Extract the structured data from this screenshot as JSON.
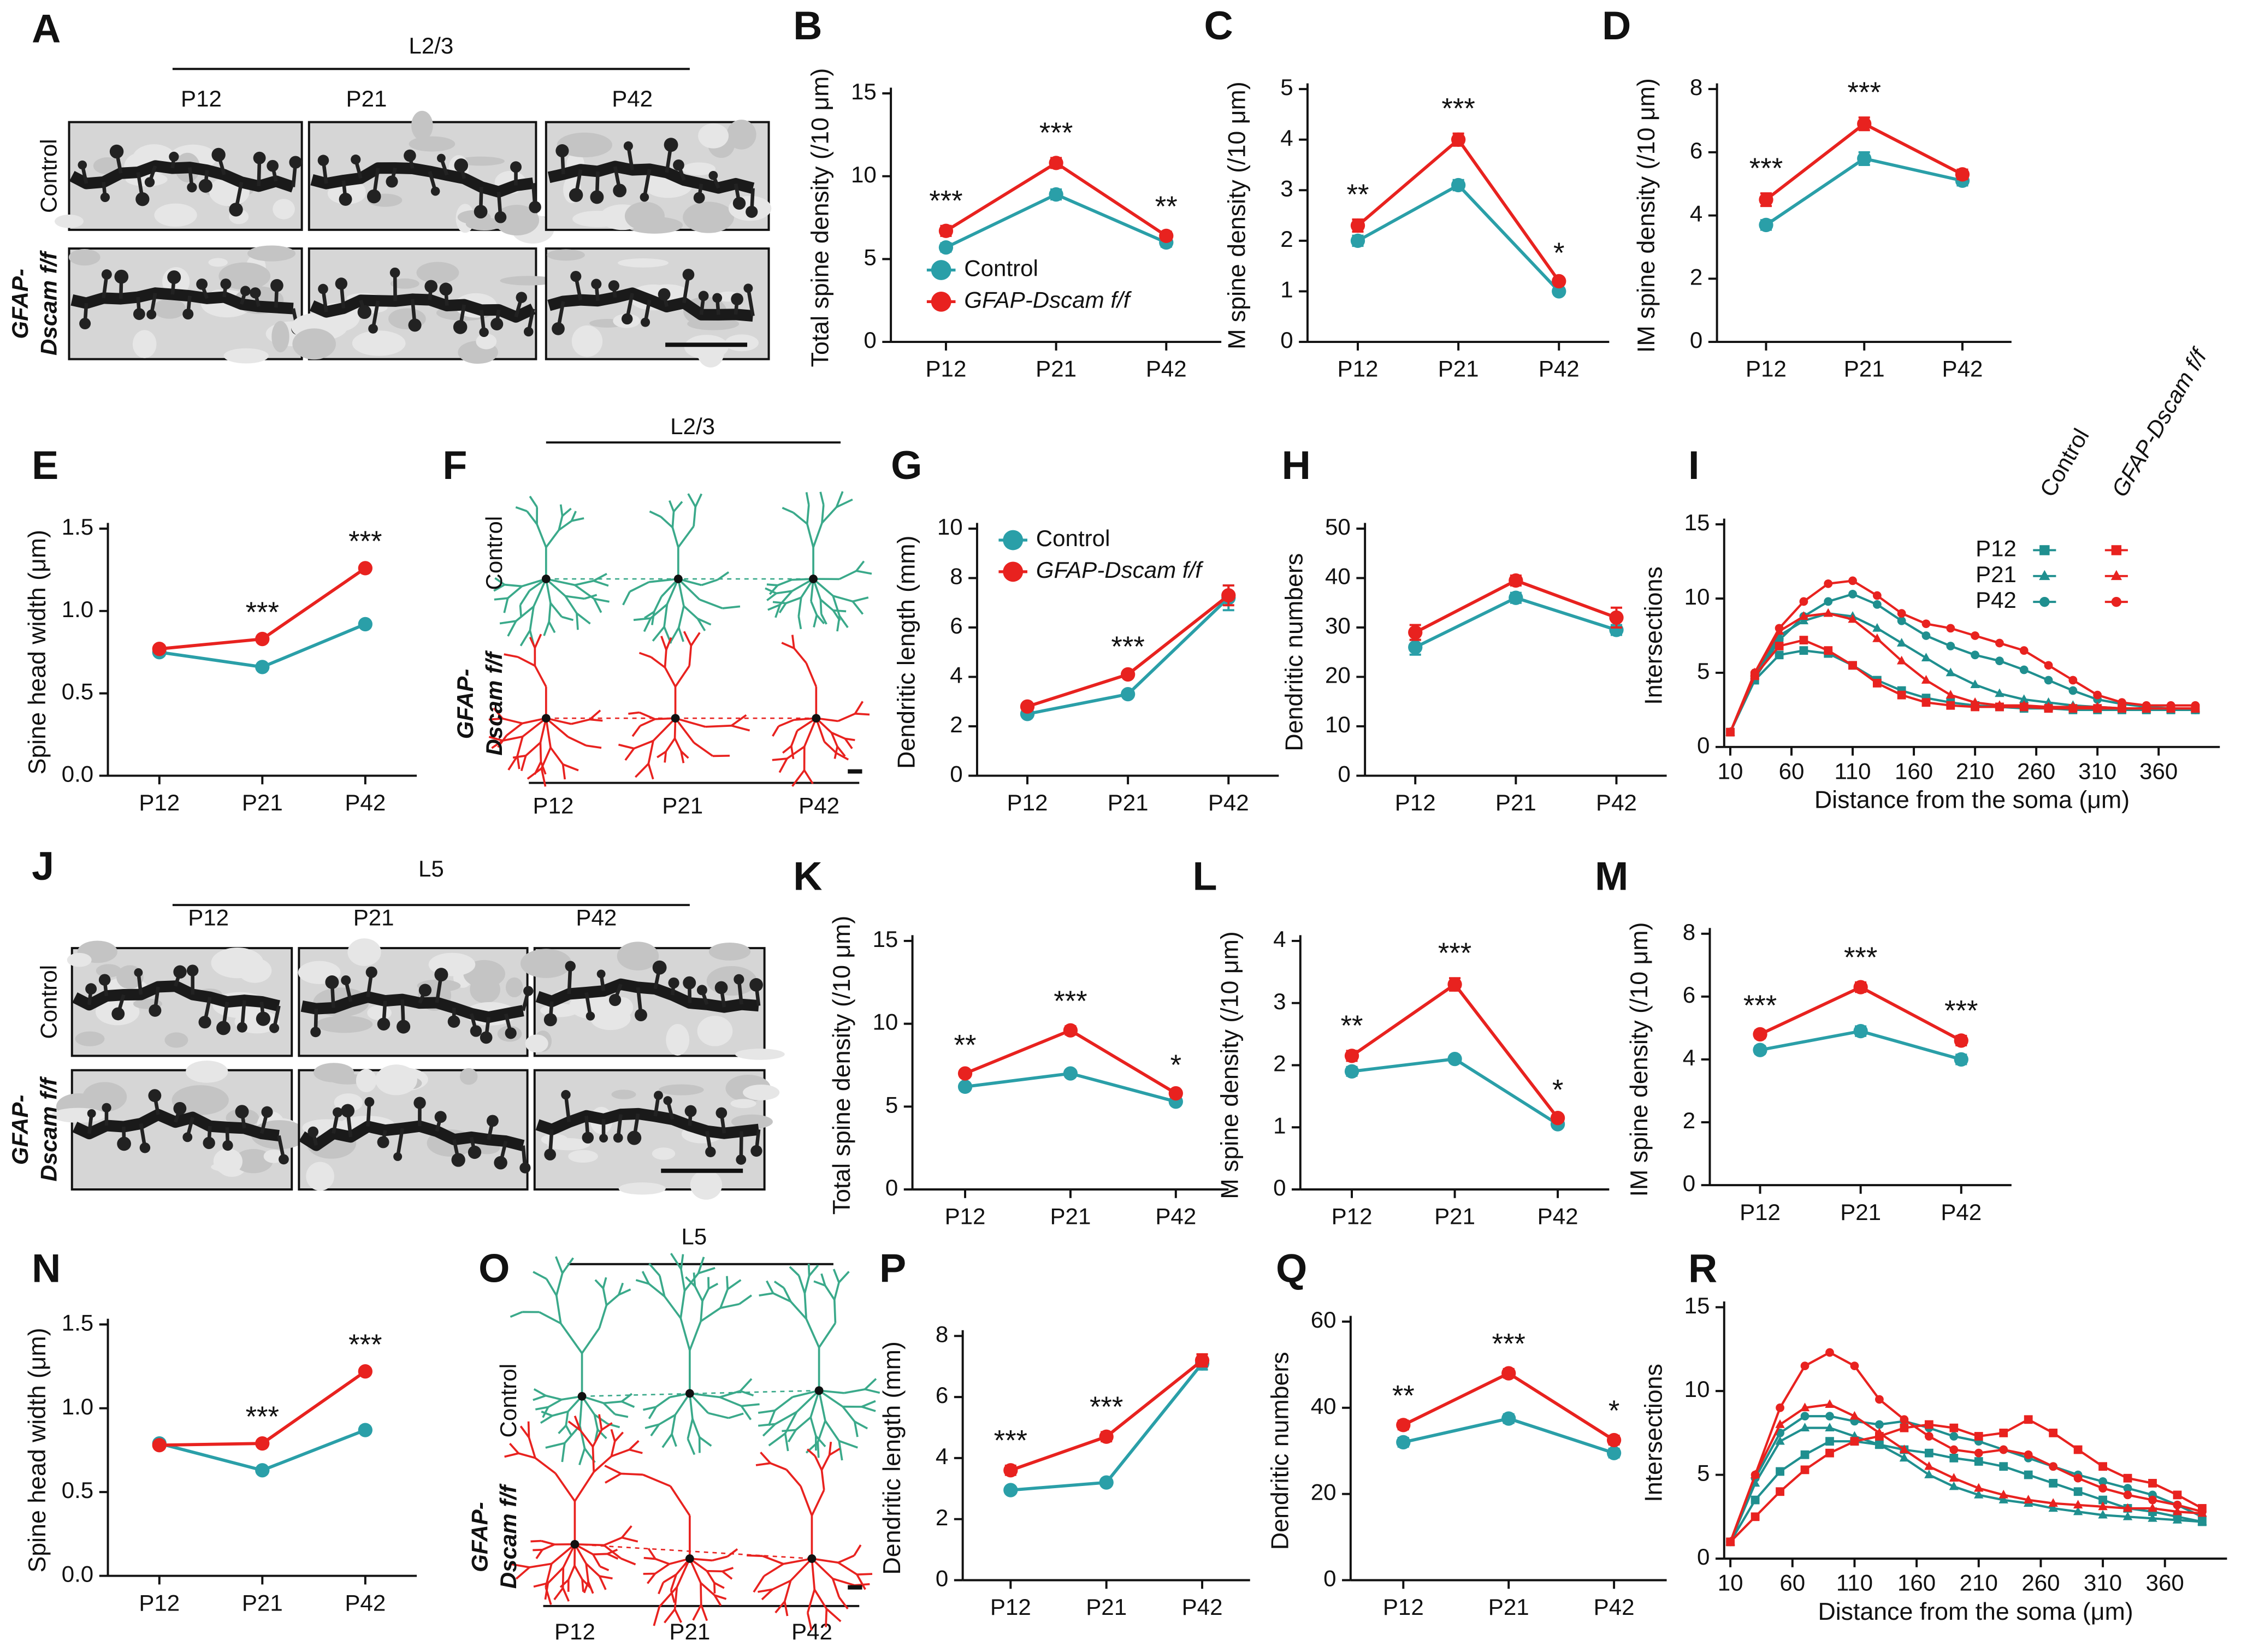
{
  "chart_data": [
    {
      "type": "line",
      "panel": "B",
      "ylabel": "Total spine density (/10 μm)",
      "categories": [
        "P12",
        "P21",
        "P42"
      ],
      "ylim": [
        0,
        15
      ],
      "yticks": [
        0,
        5,
        10,
        15
      ],
      "series": [
        {
          "name": "Control",
          "color": "#2a9fa8",
          "values": [
            5.7,
            8.9,
            6.0
          ],
          "errors": [
            0.25,
            0.3,
            0.25
          ]
        },
        {
          "name": "GFAP-Dscam f/f",
          "color": "#e8221f",
          "values": [
            6.7,
            10.8,
            6.4
          ],
          "errors": [
            0.3,
            0.3,
            0.25
          ]
        }
      ],
      "annotations": [
        "***",
        "***",
        "**"
      ],
      "legend": "lower-right"
    },
    {
      "type": "line",
      "panel": "C",
      "ylabel": "M spine density (/10 μm)",
      "categories": [
        "P12",
        "P21",
        "P42"
      ],
      "ylim": [
        0,
        5
      ],
      "yticks": [
        0,
        1,
        2,
        3,
        4,
        5
      ],
      "series": [
        {
          "color": "#2a9fa8",
          "values": [
            2.0,
            3.1,
            1.0
          ],
          "errors": [
            0.1,
            0.1,
            0.05
          ]
        },
        {
          "color": "#e8221f",
          "values": [
            2.3,
            4.0,
            1.2
          ],
          "errors": [
            0.12,
            0.12,
            0.06
          ]
        }
      ],
      "annotations": [
        "**",
        "***",
        "*"
      ]
    },
    {
      "type": "line",
      "panel": "D",
      "ylabel": "IM spine density (/10 μm)",
      "categories": [
        "P12",
        "P21",
        "P42"
      ],
      "ylim": [
        0,
        8
      ],
      "yticks": [
        0,
        2,
        4,
        6,
        8
      ],
      "series": [
        {
          "color": "#2a9fa8",
          "values": [
            3.7,
            5.8,
            5.1
          ],
          "errors": [
            0.15,
            0.2,
            0.15
          ]
        },
        {
          "color": "#e8221f",
          "values": [
            4.5,
            6.9,
            5.3
          ],
          "errors": [
            0.2,
            0.2,
            0.15
          ]
        }
      ],
      "annotations": [
        "***",
        "***",
        null
      ]
    },
    {
      "type": "line",
      "panel": "E",
      "ylabel": "Spine head width (μm)",
      "categories": [
        "P12",
        "P21",
        "P42"
      ],
      "ylim": [
        0,
        1.5
      ],
      "yticks": [
        {
          "value": 0,
          "label": "0.0"
        },
        0.5,
        {
          "value": 1,
          "label": "1.0"
        },
        1.5
      ],
      "series": [
        {
          "color": "#2a9fa8",
          "values": [
            0.75,
            0.66,
            0.92
          ],
          "errors": [
            0.02,
            0.01,
            0.01
          ]
        },
        {
          "color": "#e8221f",
          "values": [
            0.77,
            0.83,
            1.26
          ],
          "errors": [
            0.02,
            0.01,
            0.01
          ]
        }
      ],
      "annotations": [
        null,
        "***",
        "***"
      ]
    },
    {
      "type": "line",
      "panel": "G",
      "ylabel": "Dendritic length (mm)",
      "categories": [
        "P12",
        "P21",
        "P42"
      ],
      "ylim": [
        0,
        10
      ],
      "yticks": [
        0,
        2,
        4,
        6,
        8,
        10
      ],
      "series": [
        {
          "name": "Control",
          "color": "#2a9fa8",
          "values": [
            2.5,
            3.3,
            7.2
          ],
          "errors": [
            0.1,
            0.1,
            0.5
          ]
        },
        {
          "name": "GFAP-Dscam f/f",
          "color": "#e8221f",
          "values": [
            2.8,
            4.1,
            7.3
          ],
          "errors": [
            0.1,
            0.1,
            0.4
          ]
        }
      ],
      "annotations": [
        null,
        "***",
        null
      ],
      "legend": "upper-left"
    },
    {
      "type": "line",
      "panel": "H",
      "ylabel": "Dendritic numbers",
      "categories": [
        "P12",
        "P21",
        "P42"
      ],
      "ylim": [
        0,
        50
      ],
      "yticks": [
        0,
        10,
        20,
        30,
        40,
        50
      ],
      "series": [
        {
          "color": "#2a9fa8",
          "values": [
            26,
            36,
            29.5
          ],
          "errors": [
            1.5,
            1,
            1
          ]
        },
        {
          "color": "#e8221f",
          "values": [
            29,
            39.5,
            32
          ],
          "errors": [
            1.5,
            1,
            2
          ]
        }
      ]
    },
    {
      "type": "sholl",
      "panel": "I",
      "ylabel": "Intersections",
      "xlabel": "Distance from the soma (μm)",
      "xlim": [
        5,
        410
      ],
      "xticks": [
        10,
        60,
        110,
        160,
        210,
        260,
        310,
        360
      ],
      "ylim": [
        0,
        15
      ],
      "yticks": [
        0,
        5,
        10,
        15
      ],
      "x": [
        10,
        30,
        50,
        70,
        90,
        110,
        130,
        150,
        170,
        190,
        210,
        230,
        250,
        270,
        290,
        310,
        330,
        350,
        370,
        390
      ],
      "legend_columns": [
        "Control",
        "GFAP-Dscam f/f"
      ],
      "legend_rows": [
        "P12",
        "P21",
        "P42"
      ],
      "series": [
        {
          "color": "#1f8f8f",
          "marker": "square",
          "values": [
            1,
            4.5,
            6.2,
            6.5,
            6.3,
            5.5,
            4.5,
            3.8,
            3.3,
            3,
            2.8,
            2.7,
            2.6,
            2.6,
            2.5,
            2.5,
            2.5,
            2.5,
            2.5,
            2.5
          ]
        },
        {
          "color": "#1f8f8f",
          "marker": "triangle",
          "values": [
            1,
            4.8,
            7.5,
            8.5,
            9,
            8.8,
            8,
            7,
            6,
            5,
            4.2,
            3.6,
            3.2,
            3,
            2.8,
            2.7,
            2.6,
            2.5,
            2.5,
            2.5
          ]
        },
        {
          "color": "#1f8f8f",
          "marker": "circle",
          "values": [
            1,
            4.6,
            7.2,
            8.8,
            9.8,
            10.3,
            9.6,
            8.5,
            7.5,
            6.8,
            6.2,
            5.8,
            5.2,
            4.5,
            3.8,
            3.2,
            2.9,
            2.7,
            2.6,
            2.5
          ]
        },
        {
          "color": "#e8221f",
          "marker": "square",
          "values": [
            1,
            4.8,
            6.8,
            7.2,
            6.5,
            5.5,
            4.3,
            3.5,
            3,
            2.8,
            2.7,
            2.7,
            2.7,
            2.6,
            2.6,
            2.6,
            2.6,
            2.6,
            2.6,
            2.6
          ]
        },
        {
          "color": "#e8221f",
          "marker": "triangle",
          "values": [
            1,
            5,
            7.8,
            8.8,
            9,
            8.6,
            7.3,
            5.8,
            4.5,
            3.5,
            3,
            2.8,
            2.8,
            2.7,
            2.7,
            2.7,
            2.6,
            2.6,
            2.6,
            2.6
          ]
        },
        {
          "color": "#e8221f",
          "marker": "circle",
          "values": [
            1,
            5,
            8,
            9.8,
            11,
            11.2,
            10.2,
            9,
            8.3,
            8,
            7.5,
            7,
            6.5,
            5.5,
            4.5,
            3.5,
            3,
            2.8,
            2.8,
            2.8
          ]
        }
      ]
    },
    {
      "type": "line",
      "panel": "K",
      "ylabel": "Total spine density (/10 μm)",
      "categories": [
        "P12",
        "P21",
        "P42"
      ],
      "ylim": [
        0,
        15
      ],
      "yticks": [
        0,
        5,
        10,
        15
      ],
      "series": [
        {
          "color": "#2a9fa8",
          "values": [
            6.2,
            7.0,
            5.3
          ],
          "errors": [
            0.2,
            0.2,
            0.2
          ]
        },
        {
          "color": "#e8221f",
          "values": [
            7.0,
            9.6,
            5.8
          ],
          "errors": [
            0.2,
            0.25,
            0.2
          ]
        }
      ],
      "annotations": [
        "**",
        "***",
        "*"
      ]
    },
    {
      "type": "line",
      "panel": "L",
      "ylabel": "M spine density (/10 μm)",
      "categories": [
        "P12",
        "P21",
        "P42"
      ],
      "ylim": [
        0,
        4
      ],
      "yticks": [
        0,
        1,
        2,
        3,
        4
      ],
      "series": [
        {
          "color": "#2a9fa8",
          "values": [
            1.9,
            2.1,
            1.05
          ],
          "errors": [
            0.07,
            0.05,
            0.05
          ]
        },
        {
          "color": "#e8221f",
          "values": [
            2.15,
            3.3,
            1.15
          ],
          "errors": [
            0.08,
            0.1,
            0.05
          ]
        }
      ],
      "annotations": [
        "**",
        "***",
        "*"
      ]
    },
    {
      "type": "line",
      "panel": "M",
      "ylabel": "IM spine density (/10 μm)",
      "categories": [
        "P12",
        "P21",
        "P42"
      ],
      "ylim": [
        0,
        8
      ],
      "yticks": [
        0,
        2,
        4,
        6,
        8
      ],
      "series": [
        {
          "color": "#2a9fa8",
          "values": [
            4.3,
            4.9,
            4.0
          ],
          "errors": [
            0.12,
            0.15,
            0.15
          ]
        },
        {
          "color": "#e8221f",
          "values": [
            4.8,
            6.3,
            4.6
          ],
          "errors": [
            0.12,
            0.15,
            0.15
          ]
        }
      ],
      "annotations": [
        "***",
        "***",
        "***"
      ]
    },
    {
      "type": "line",
      "panel": "N",
      "ylabel": "Spine head width (μm)",
      "categories": [
        "P12",
        "P21",
        "P42"
      ],
      "ylim": [
        0,
        1.5
      ],
      "yticks": [
        {
          "value": 0,
          "label": "0.0"
        },
        0.5,
        {
          "value": 1,
          "label": "1.0"
        },
        1.5
      ],
      "series": [
        {
          "color": "#2a9fa8",
          "values": [
            0.79,
            0.63,
            0.87
          ],
          "errors": [
            0.02,
            0.01,
            0.01
          ]
        },
        {
          "color": "#e8221f",
          "values": [
            0.78,
            0.79,
            1.22
          ],
          "errors": [
            0.02,
            0.01,
            0.01
          ]
        }
      ],
      "annotations": [
        null,
        "***",
        "***"
      ]
    },
    {
      "type": "line",
      "panel": "P",
      "ylabel": "Dendritic length (mm)",
      "categories": [
        "P12",
        "P21",
        "P42"
      ],
      "ylim": [
        0,
        8
      ],
      "yticks": [
        0,
        2,
        4,
        6,
        8
      ],
      "series": [
        {
          "color": "#2a9fa8",
          "values": [
            2.95,
            3.2,
            7.1
          ],
          "errors": [
            0.1,
            0.1,
            0.2
          ]
        },
        {
          "color": "#e8221f",
          "values": [
            3.6,
            4.7,
            7.2
          ],
          "errors": [
            0.15,
            0.15,
            0.2
          ]
        }
      ],
      "annotations": [
        "***",
        "***",
        null
      ]
    },
    {
      "type": "line",
      "panel": "Q",
      "ylabel": "Dendritic numbers",
      "categories": [
        "P12",
        "P21",
        "P42"
      ],
      "ylim": [
        0,
        60
      ],
      "yticks": [
        0,
        20,
        40,
        60
      ],
      "series": [
        {
          "color": "#2a9fa8",
          "values": [
            32,
            37.5,
            29.5
          ],
          "errors": [
            1,
            1,
            1
          ]
        },
        {
          "color": "#e8221f",
          "values": [
            36,
            48,
            32.5
          ],
          "errors": [
            1,
            1,
            1
          ]
        }
      ],
      "annotations": [
        "**",
        "***",
        "*"
      ]
    },
    {
      "type": "sholl",
      "panel": "R",
      "ylabel": "Intersections",
      "xlabel": "Distance from the soma (μm)",
      "xlim": [
        5,
        410
      ],
      "xticks": [
        10,
        60,
        110,
        160,
        210,
        260,
        310,
        360
      ],
      "ylim": [
        0,
        15
      ],
      "yticks": [
        0,
        5,
        10,
        15
      ],
      "x": [
        10,
        30,
        50,
        70,
        90,
        110,
        130,
        150,
        170,
        190,
        210,
        230,
        250,
        270,
        290,
        310,
        330,
        350,
        370,
        390
      ],
      "series": [
        {
          "color": "#1f8f8f",
          "marker": "square",
          "values": [
            1,
            3.5,
            5.2,
            6.2,
            7,
            7,
            6.8,
            6.5,
            6.3,
            6,
            5.8,
            5.5,
            5,
            4.5,
            4,
            3.5,
            3,
            2.8,
            2.5,
            2.2
          ]
        },
        {
          "color": "#1f8f8f",
          "marker": "triangle",
          "values": [
            1,
            4.5,
            7,
            7.8,
            7.8,
            7.3,
            6.8,
            6,
            5,
            4.3,
            3.8,
            3.5,
            3.3,
            3,
            2.8,
            2.6,
            2.5,
            2.4,
            2.3,
            2.2
          ]
        },
        {
          "color": "#1f8f8f",
          "marker": "circle",
          "values": [
            1,
            4.8,
            7.5,
            8.5,
            8.5,
            8.2,
            8,
            8.2,
            7.8,
            7.3,
            7,
            6.5,
            6,
            5.5,
            5,
            4.6,
            4.2,
            3.8,
            3.2,
            2.5
          ]
        },
        {
          "color": "#e8221f",
          "marker": "square",
          "values": [
            1,
            2.5,
            4,
            5.3,
            6.3,
            7,
            7.3,
            7.8,
            8,
            7.8,
            7.3,
            7.5,
            8.3,
            7.5,
            6.5,
            5.5,
            4.8,
            4.5,
            3.8,
            3
          ]
        },
        {
          "color": "#e8221f",
          "marker": "triangle",
          "values": [
            1,
            5,
            8,
            9,
            9.2,
            8.5,
            7.5,
            6.5,
            5.5,
            4.8,
            4.2,
            3.8,
            3.5,
            3.3,
            3.2,
            3.1,
            3,
            3,
            2.8,
            2.7
          ]
        },
        {
          "color": "#e8221f",
          "marker": "circle",
          "values": [
            1,
            5,
            9,
            11.5,
            12.3,
            11.5,
            9.5,
            8.3,
            7.3,
            6.5,
            6.3,
            6.5,
            6.2,
            5.5,
            4.8,
            4.2,
            3.8,
            3.5,
            3.2,
            2.8
          ]
        }
      ]
    }
  ],
  "image_panels": [
    {
      "panel": "A",
      "layer": "L2/3",
      "columns": [
        "P12",
        "P21",
        "P42"
      ],
      "control_label": "Control",
      "mutant_label": [
        "GFAP-",
        "Dscam f/f"
      ]
    },
    {
      "panel": "F",
      "layer": "L2/3",
      "columns": [
        "P12",
        "P21",
        "P42"
      ],
      "control_label": "Control",
      "mutant_label": [
        "GFAP-",
        "Dscam f/f"
      ]
    },
    {
      "panel": "J",
      "layer": "L5",
      "columns": [
        "P12",
        "P21",
        "P42"
      ],
      "control_label": "Control",
      "mutant_label": [
        "GFAP-",
        "Dscam f/f"
      ]
    },
    {
      "panel": "O",
      "layer": "L5",
      "columns": [
        "P12",
        "P21",
        "P42"
      ],
      "control_label": "Control",
      "mutant_label": [
        "GFAP-",
        "Dscam f/f"
      ]
    }
  ]
}
